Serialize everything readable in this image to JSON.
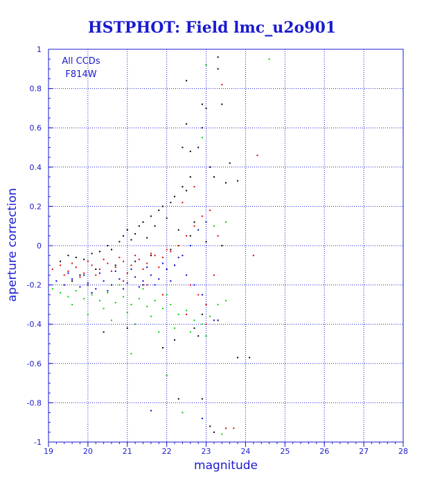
{
  "chart_data": {
    "type": "scatter",
    "title": "HSTPHOT: Field lmc_u2o901",
    "xlabel": "magnitude",
    "ylabel": "aperture correction",
    "annotations": [
      "All CCDs",
      "F814W"
    ],
    "xlim": [
      19,
      28
    ],
    "ylim": [
      -1,
      1
    ],
    "x_ticks": [
      19,
      20,
      21,
      22,
      23,
      24,
      25,
      26,
      27,
      28
    ],
    "y_ticks": [
      -1,
      -0.8,
      -0.6,
      -0.4,
      -0.2,
      0,
      0.2,
      0.4,
      0.6,
      0.8,
      1
    ],
    "x_tick_labels": [
      "19",
      "20",
      "21",
      "22",
      "23",
      "24",
      "25",
      "26",
      "27",
      "28"
    ],
    "y_tick_labels": [
      "-1",
      "-0.8",
      "-0.6",
      "-0.4",
      "-0.2",
      "0",
      "0.2",
      "0.4",
      "0.6",
      "0.8",
      "1"
    ],
    "grid": true,
    "colors": {
      "axis": "#1a1ad0",
      "grid": "#1a1ad0",
      "black": "#000000",
      "red": "#e00000",
      "blue": "#0000e0",
      "green": "#00d000"
    },
    "series": [
      {
        "color": "#000000",
        "points": [
          [
            19.3,
            -0.08
          ],
          [
            19.5,
            -0.05
          ],
          [
            19.7,
            -0.06
          ],
          [
            19.9,
            -0.07
          ],
          [
            20.1,
            -0.04
          ],
          [
            20.3,
            -0.03
          ],
          [
            20.5,
            0.0
          ],
          [
            20.6,
            -0.02
          ],
          [
            20.8,
            0.02
          ],
          [
            20.9,
            0.05
          ],
          [
            21.0,
            0.08
          ],
          [
            21.1,
            0.03
          ],
          [
            21.2,
            0.06
          ],
          [
            21.3,
            0.1
          ],
          [
            21.4,
            0.12
          ],
          [
            21.5,
            0.04
          ],
          [
            21.6,
            0.15
          ],
          [
            21.7,
            0.1
          ],
          [
            21.8,
            0.18
          ],
          [
            21.9,
            0.2
          ],
          [
            22.0,
            0.14
          ],
          [
            22.1,
            0.22
          ],
          [
            22.2,
            0.25
          ],
          [
            22.3,
            0.08
          ],
          [
            22.4,
            0.3
          ],
          [
            22.5,
            0.28
          ],
          [
            22.6,
            0.35
          ],
          [
            22.7,
            0.12
          ],
          [
            22.8,
            0.5
          ],
          [
            22.9,
            0.6
          ],
          [
            23.0,
            0.7
          ],
          [
            23.1,
            0.4
          ],
          [
            22.5,
            0.84
          ],
          [
            22.4,
            0.5
          ],
          [
            22.5,
            0.62
          ],
          [
            22.6,
            0.48
          ],
          [
            22.9,
            0.72
          ],
          [
            23.3,
            0.96
          ],
          [
            23.3,
            0.9
          ],
          [
            23.4,
            0.72
          ],
          [
            23.2,
            0.35
          ],
          [
            23.5,
            0.32
          ],
          [
            23.6,
            0.42
          ],
          [
            23.8,
            0.33
          ],
          [
            22.9,
            -0.78
          ],
          [
            23.2,
            -0.95
          ],
          [
            23.8,
            -0.57
          ],
          [
            24.1,
            -0.57
          ],
          [
            20.4,
            -0.44
          ],
          [
            21.0,
            -0.42
          ],
          [
            21.9,
            -0.52
          ],
          [
            22.2,
            -0.48
          ],
          [
            22.8,
            -0.46
          ],
          [
            22.9,
            -0.35
          ],
          [
            23.3,
            -0.38
          ],
          [
            19.8,
            -0.15
          ],
          [
            20.2,
            -0.12
          ],
          [
            20.7,
            -0.1
          ],
          [
            21.2,
            -0.08
          ],
          [
            21.6,
            -0.05
          ],
          [
            22.1,
            -0.02
          ],
          [
            22.6,
            0.05
          ],
          [
            23.0,
            0.02
          ],
          [
            23.4,
            0.0
          ],
          [
            22.3,
            -0.78
          ],
          [
            23.1,
            -0.92
          ],
          [
            22.7,
            -0.42
          ],
          [
            21.4,
            -0.2
          ],
          [
            20.0,
            -0.2
          ],
          [
            19.6,
            -0.18
          ]
        ]
      },
      {
        "color": "#e00000",
        "points": [
          [
            19.1,
            -0.12
          ],
          [
            19.3,
            -0.1
          ],
          [
            19.5,
            -0.13
          ],
          [
            19.7,
            -0.11
          ],
          [
            19.9,
            -0.14
          ],
          [
            20.1,
            -0.1
          ],
          [
            20.3,
            -0.12
          ],
          [
            20.5,
            -0.09
          ],
          [
            20.7,
            -0.11
          ],
          [
            20.9,
            -0.08
          ],
          [
            21.1,
            -0.1
          ],
          [
            21.3,
            -0.07
          ],
          [
            21.5,
            -0.09
          ],
          [
            21.7,
            -0.05
          ],
          [
            21.9,
            -0.06
          ],
          [
            22.1,
            -0.03
          ],
          [
            22.3,
            0.0
          ],
          [
            22.5,
            0.05
          ],
          [
            22.7,
            0.1
          ],
          [
            22.9,
            0.15
          ],
          [
            23.1,
            0.18
          ],
          [
            23.3,
            0.05
          ],
          [
            23.5,
            0.12
          ],
          [
            22.6,
            -0.2
          ],
          [
            22.8,
            -0.25
          ],
          [
            23.0,
            -0.3
          ],
          [
            23.2,
            -0.15
          ],
          [
            23.4,
            0.82
          ],
          [
            23.5,
            -0.93
          ],
          [
            23.7,
            -0.93
          ],
          [
            24.3,
            0.46
          ],
          [
            24.2,
            -0.05
          ],
          [
            19.4,
            -0.15
          ],
          [
            19.8,
            -0.16
          ],
          [
            20.2,
            -0.15
          ],
          [
            20.6,
            -0.13
          ],
          [
            21.0,
            -0.14
          ],
          [
            21.4,
            -0.12
          ],
          [
            21.8,
            -0.11
          ],
          [
            22.2,
            -0.1
          ],
          [
            20.0,
            -0.08
          ],
          [
            20.4,
            -0.07
          ],
          [
            20.8,
            -0.06
          ],
          [
            21.2,
            -0.05
          ],
          [
            21.6,
            -0.04
          ],
          [
            22.0,
            -0.02
          ],
          [
            22.4,
            0.22
          ],
          [
            22.7,
            0.3
          ],
          [
            23.0,
            -0.4
          ],
          [
            22.5,
            -0.35
          ],
          [
            21.9,
            -0.25
          ],
          [
            21.5,
            -0.2
          ],
          [
            20.9,
            -0.18
          ],
          [
            19.6,
            -0.09
          ]
        ]
      },
      {
        "color": "#0000e0",
        "points": [
          [
            19.2,
            -0.18
          ],
          [
            19.4,
            -0.2
          ],
          [
            19.6,
            -0.17
          ],
          [
            19.8,
            -0.21
          ],
          [
            20.0,
            -0.19
          ],
          [
            20.2,
            -0.22
          ],
          [
            20.4,
            -0.18
          ],
          [
            20.6,
            -0.2
          ],
          [
            20.8,
            -0.17
          ],
          [
            21.0,
            -0.19
          ],
          [
            21.2,
            -0.16
          ],
          [
            21.4,
            -0.18
          ],
          [
            21.6,
            -0.15
          ],
          [
            21.8,
            -0.17
          ],
          [
            22.0,
            -0.12
          ],
          [
            22.2,
            -0.1
          ],
          [
            22.4,
            -0.05
          ],
          [
            22.6,
            0.0
          ],
          [
            22.8,
            0.08
          ],
          [
            23.0,
            0.12
          ],
          [
            22.5,
            -0.15
          ],
          [
            22.7,
            -0.2
          ],
          [
            22.9,
            -0.25
          ],
          [
            21.6,
            -0.84
          ],
          [
            22.9,
            -0.88
          ],
          [
            23.2,
            -0.38
          ],
          [
            19.5,
            -0.14
          ],
          [
            19.9,
            -0.15
          ],
          [
            20.3,
            -0.14
          ],
          [
            20.7,
            -0.13
          ],
          [
            21.1,
            -0.12
          ],
          [
            21.5,
            -0.11
          ],
          [
            21.9,
            -0.09
          ],
          [
            22.3,
            -0.06
          ],
          [
            20.1,
            -0.24
          ],
          [
            20.5,
            -0.23
          ],
          [
            20.9,
            -0.22
          ],
          [
            21.3,
            -0.21
          ],
          [
            21.7,
            -0.2
          ],
          [
            22.1,
            -0.18
          ]
        ]
      },
      {
        "color": "#00d000",
        "points": [
          [
            19.1,
            -0.22
          ],
          [
            19.3,
            -0.24
          ],
          [
            19.5,
            -0.26
          ],
          [
            19.7,
            -0.23
          ],
          [
            19.9,
            -0.27
          ],
          [
            20.1,
            -0.25
          ],
          [
            20.3,
            -0.28
          ],
          [
            20.5,
            -0.24
          ],
          [
            20.7,
            -0.29
          ],
          [
            20.9,
            -0.26
          ],
          [
            21.1,
            -0.3
          ],
          [
            21.3,
            -0.27
          ],
          [
            21.5,
            -0.31
          ],
          [
            21.7,
            -0.28
          ],
          [
            21.9,
            -0.32
          ],
          [
            22.1,
            -0.3
          ],
          [
            22.3,
            -0.35
          ],
          [
            22.5,
            -0.33
          ],
          [
            22.7,
            -0.38
          ],
          [
            22.9,
            -0.4
          ],
          [
            23.1,
            -0.36
          ],
          [
            23.3,
            -0.3
          ],
          [
            23.5,
            -0.28
          ],
          [
            23.0,
            0.92
          ],
          [
            24.6,
            0.95
          ],
          [
            22.4,
            -0.85
          ],
          [
            22.0,
            -0.66
          ],
          [
            23.4,
            -0.96
          ],
          [
            22.9,
            0.55
          ],
          [
            23.2,
            0.1
          ],
          [
            23.5,
            0.12
          ],
          [
            20.0,
            -0.35
          ],
          [
            20.6,
            -0.38
          ],
          [
            21.2,
            -0.4
          ],
          [
            21.8,
            -0.44
          ],
          [
            19.6,
            -0.3
          ],
          [
            20.4,
            -0.32
          ],
          [
            21.0,
            -0.34
          ],
          [
            21.6,
            -0.36
          ],
          [
            22.2,
            -0.42
          ],
          [
            22.6,
            -0.44
          ],
          [
            23.0,
            -0.46
          ],
          [
            21.1,
            -0.55
          ],
          [
            20.8,
            -0.2
          ],
          [
            21.4,
            -0.22
          ],
          [
            22.0,
            -0.25
          ]
        ]
      }
    ]
  }
}
